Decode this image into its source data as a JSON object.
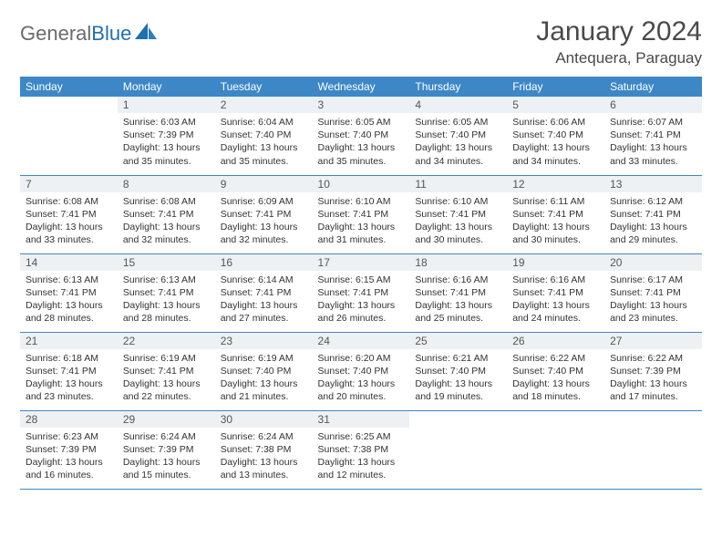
{
  "logo": {
    "word1": "General",
    "word2": "Blue"
  },
  "title": "January 2024",
  "location": "Antequera, Paraguay",
  "colors": {
    "header_bg": "#3d87c7",
    "header_text": "#ffffff",
    "daynum_bg": "#eef1f3",
    "rule": "#3d87c7",
    "logo_gray": "#6a6a6a",
    "logo_blue": "#1f6fb2"
  },
  "typography": {
    "title_fontsize": 30,
    "location_fontsize": 17,
    "th_fontsize": 12,
    "body_fontsize": 10.5
  },
  "weekdays": [
    "Sunday",
    "Monday",
    "Tuesday",
    "Wednesday",
    "Thursday",
    "Friday",
    "Saturday"
  ],
  "weeks": [
    [
      {
        "n": "",
        "sr": "",
        "ss": "",
        "dl": ""
      },
      {
        "n": "1",
        "sr": "Sunrise: 6:03 AM",
        "ss": "Sunset: 7:39 PM",
        "dl": "Daylight: 13 hours and 35 minutes."
      },
      {
        "n": "2",
        "sr": "Sunrise: 6:04 AM",
        "ss": "Sunset: 7:40 PM",
        "dl": "Daylight: 13 hours and 35 minutes."
      },
      {
        "n": "3",
        "sr": "Sunrise: 6:05 AM",
        "ss": "Sunset: 7:40 PM",
        "dl": "Daylight: 13 hours and 35 minutes."
      },
      {
        "n": "4",
        "sr": "Sunrise: 6:05 AM",
        "ss": "Sunset: 7:40 PM",
        "dl": "Daylight: 13 hours and 34 minutes."
      },
      {
        "n": "5",
        "sr": "Sunrise: 6:06 AM",
        "ss": "Sunset: 7:40 PM",
        "dl": "Daylight: 13 hours and 34 minutes."
      },
      {
        "n": "6",
        "sr": "Sunrise: 6:07 AM",
        "ss": "Sunset: 7:41 PM",
        "dl": "Daylight: 13 hours and 33 minutes."
      }
    ],
    [
      {
        "n": "7",
        "sr": "Sunrise: 6:08 AM",
        "ss": "Sunset: 7:41 PM",
        "dl": "Daylight: 13 hours and 33 minutes."
      },
      {
        "n": "8",
        "sr": "Sunrise: 6:08 AM",
        "ss": "Sunset: 7:41 PM",
        "dl": "Daylight: 13 hours and 32 minutes."
      },
      {
        "n": "9",
        "sr": "Sunrise: 6:09 AM",
        "ss": "Sunset: 7:41 PM",
        "dl": "Daylight: 13 hours and 32 minutes."
      },
      {
        "n": "10",
        "sr": "Sunrise: 6:10 AM",
        "ss": "Sunset: 7:41 PM",
        "dl": "Daylight: 13 hours and 31 minutes."
      },
      {
        "n": "11",
        "sr": "Sunrise: 6:10 AM",
        "ss": "Sunset: 7:41 PM",
        "dl": "Daylight: 13 hours and 30 minutes."
      },
      {
        "n": "12",
        "sr": "Sunrise: 6:11 AM",
        "ss": "Sunset: 7:41 PM",
        "dl": "Daylight: 13 hours and 30 minutes."
      },
      {
        "n": "13",
        "sr": "Sunrise: 6:12 AM",
        "ss": "Sunset: 7:41 PM",
        "dl": "Daylight: 13 hours and 29 minutes."
      }
    ],
    [
      {
        "n": "14",
        "sr": "Sunrise: 6:13 AM",
        "ss": "Sunset: 7:41 PM",
        "dl": "Daylight: 13 hours and 28 minutes."
      },
      {
        "n": "15",
        "sr": "Sunrise: 6:13 AM",
        "ss": "Sunset: 7:41 PM",
        "dl": "Daylight: 13 hours and 28 minutes."
      },
      {
        "n": "16",
        "sr": "Sunrise: 6:14 AM",
        "ss": "Sunset: 7:41 PM",
        "dl": "Daylight: 13 hours and 27 minutes."
      },
      {
        "n": "17",
        "sr": "Sunrise: 6:15 AM",
        "ss": "Sunset: 7:41 PM",
        "dl": "Daylight: 13 hours and 26 minutes."
      },
      {
        "n": "18",
        "sr": "Sunrise: 6:16 AM",
        "ss": "Sunset: 7:41 PM",
        "dl": "Daylight: 13 hours and 25 minutes."
      },
      {
        "n": "19",
        "sr": "Sunrise: 6:16 AM",
        "ss": "Sunset: 7:41 PM",
        "dl": "Daylight: 13 hours and 24 minutes."
      },
      {
        "n": "20",
        "sr": "Sunrise: 6:17 AM",
        "ss": "Sunset: 7:41 PM",
        "dl": "Daylight: 13 hours and 23 minutes."
      }
    ],
    [
      {
        "n": "21",
        "sr": "Sunrise: 6:18 AM",
        "ss": "Sunset: 7:41 PM",
        "dl": "Daylight: 13 hours and 23 minutes."
      },
      {
        "n": "22",
        "sr": "Sunrise: 6:19 AM",
        "ss": "Sunset: 7:41 PM",
        "dl": "Daylight: 13 hours and 22 minutes."
      },
      {
        "n": "23",
        "sr": "Sunrise: 6:19 AM",
        "ss": "Sunset: 7:40 PM",
        "dl": "Daylight: 13 hours and 21 minutes."
      },
      {
        "n": "24",
        "sr": "Sunrise: 6:20 AM",
        "ss": "Sunset: 7:40 PM",
        "dl": "Daylight: 13 hours and 20 minutes."
      },
      {
        "n": "25",
        "sr": "Sunrise: 6:21 AM",
        "ss": "Sunset: 7:40 PM",
        "dl": "Daylight: 13 hours and 19 minutes."
      },
      {
        "n": "26",
        "sr": "Sunrise: 6:22 AM",
        "ss": "Sunset: 7:40 PM",
        "dl": "Daylight: 13 hours and 18 minutes."
      },
      {
        "n": "27",
        "sr": "Sunrise: 6:22 AM",
        "ss": "Sunset: 7:39 PM",
        "dl": "Daylight: 13 hours and 17 minutes."
      }
    ],
    [
      {
        "n": "28",
        "sr": "Sunrise: 6:23 AM",
        "ss": "Sunset: 7:39 PM",
        "dl": "Daylight: 13 hours and 16 minutes."
      },
      {
        "n": "29",
        "sr": "Sunrise: 6:24 AM",
        "ss": "Sunset: 7:39 PM",
        "dl": "Daylight: 13 hours and 15 minutes."
      },
      {
        "n": "30",
        "sr": "Sunrise: 6:24 AM",
        "ss": "Sunset: 7:38 PM",
        "dl": "Daylight: 13 hours and 13 minutes."
      },
      {
        "n": "31",
        "sr": "Sunrise: 6:25 AM",
        "ss": "Sunset: 7:38 PM",
        "dl": "Daylight: 13 hours and 12 minutes."
      },
      {
        "n": "",
        "sr": "",
        "ss": "",
        "dl": ""
      },
      {
        "n": "",
        "sr": "",
        "ss": "",
        "dl": ""
      },
      {
        "n": "",
        "sr": "",
        "ss": "",
        "dl": ""
      }
    ]
  ]
}
